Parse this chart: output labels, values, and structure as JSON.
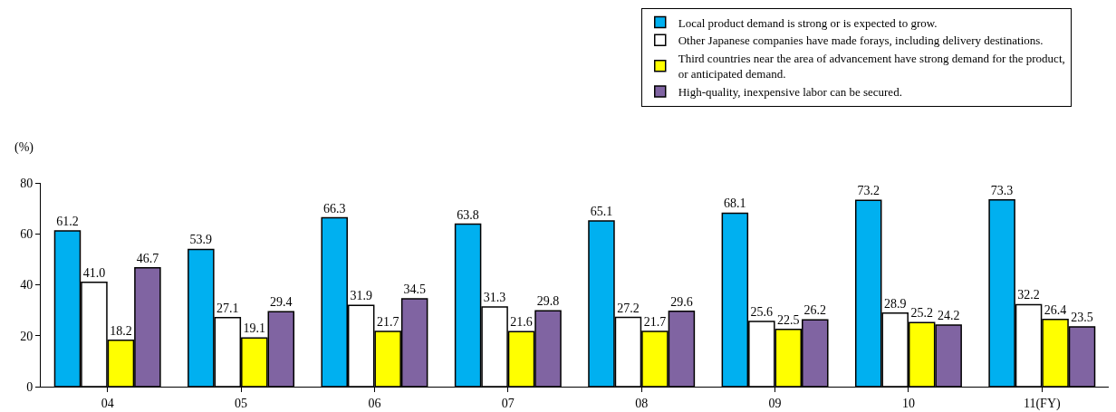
{
  "chart_data": {
    "type": "bar",
    "ylabel": "(%)",
    "categories": [
      "04",
      "05",
      "06",
      "07",
      "08",
      "09",
      "10",
      "11(FY)"
    ],
    "series": [
      {
        "name": "Local product demand is strong or is expected to grow.",
        "color": "#00b0f0",
        "values": [
          61.2,
          53.9,
          66.3,
          63.8,
          65.1,
          68.1,
          73.2,
          73.3
        ],
        "value_labels": [
          "61.2",
          "53.9",
          "66.3",
          "63.8",
          "65.1",
          "68.1",
          "73.2",
          "73.3"
        ]
      },
      {
        "name": "Other Japanese companies have made forays, including delivery destinations.",
        "color": "#ffffff",
        "values": [
          41.0,
          27.1,
          31.9,
          31.3,
          27.2,
          25.6,
          28.9,
          32.2
        ],
        "value_labels": [
          "41.0",
          "27.1",
          "31.9",
          "31.3",
          "27.2",
          "25.6",
          "28.9",
          "32.2"
        ]
      },
      {
        "name": "Third countries near the area of advancement have strong demand for the product, or anticipated demand.",
        "color": "#ffff00",
        "values": [
          18.2,
          19.1,
          21.7,
          21.6,
          21.7,
          22.5,
          25.2,
          26.4
        ],
        "value_labels": [
          "18.2",
          "19.1",
          "21.7",
          "21.6",
          "21.7",
          "22.5",
          "25.2",
          "26.4"
        ]
      },
      {
        "name": "High-quality, inexpensive labor can be secured.",
        "color": "#8064a2",
        "values": [
          46.7,
          29.4,
          34.5,
          29.8,
          29.6,
          26.2,
          24.2,
          23.5
        ],
        "value_labels": [
          "46.7",
          "29.4",
          "34.5",
          "29.8",
          "29.6",
          "26.2",
          "24.2",
          "23.5"
        ]
      }
    ],
    "ylim": [
      0,
      80
    ],
    "yticks": [
      0,
      20,
      40,
      60,
      80
    ],
    "grid": false,
    "legend": "top right"
  }
}
